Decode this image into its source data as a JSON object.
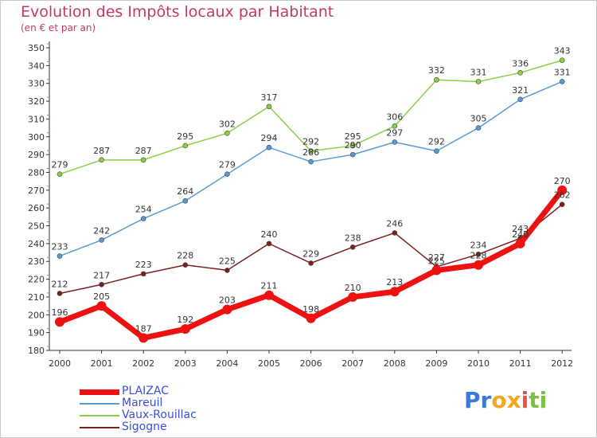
{
  "title": "Evolution des Impôts locaux par Habitant",
  "subtitle": "(en € et par an)",
  "brand": {
    "letters": [
      {
        "ch": "P",
        "color": "#3a7bd5"
      },
      {
        "ch": "r",
        "color": "#3a7bd5"
      },
      {
        "ch": "o",
        "color": "#f5a623"
      },
      {
        "ch": "x",
        "color": "#f5a623"
      },
      {
        "ch": "i",
        "color": "#e8524a"
      },
      {
        "ch": "t",
        "color": "#7cc242"
      },
      {
        "ch": "i",
        "color": "#7cc242"
      }
    ]
  },
  "chart_data": {
    "type": "line",
    "title": "Evolution des Impôts locaux par Habitant",
    "subtitle": "(en € et par an)",
    "categories": [
      "2000",
      "2001",
      "2002",
      "2003",
      "2004",
      "2005",
      "2006",
      "2007",
      "2008",
      "2009",
      "2010",
      "2011",
      "2012"
    ],
    "ylim": [
      180,
      350
    ],
    "ytick_step": 10,
    "grid": false,
    "legend_position": "bottom-left",
    "series": [
      {
        "name": "Vaux-Rouillac",
        "color": "#8ad045",
        "values": [
          279,
          287,
          287,
          295,
          302,
          317,
          292,
          295,
          306,
          332,
          331,
          336,
          343
        ]
      },
      {
        "name": "Mareuil",
        "color": "#5b9bd5",
        "values": [
          233,
          242,
          254,
          264,
          279,
          294,
          286,
          290,
          297,
          292,
          305,
          321,
          331
        ]
      },
      {
        "name": "Sigogne",
        "color": "#7a1f1f",
        "values": [
          212,
          217,
          223,
          228,
          225,
          240,
          229,
          238,
          246,
          227,
          234,
          243,
          262
        ]
      },
      {
        "name": "PLAIZAC",
        "color": "#ee1111",
        "values": [
          196,
          205,
          187,
          192,
          203,
          211,
          198,
          210,
          213,
          225,
          228,
          240,
          270
        ]
      }
    ],
    "legend_order": [
      "PLAIZAC",
      "Mareuil",
      "Vaux-Rouillac",
      "Sigogne"
    ]
  }
}
